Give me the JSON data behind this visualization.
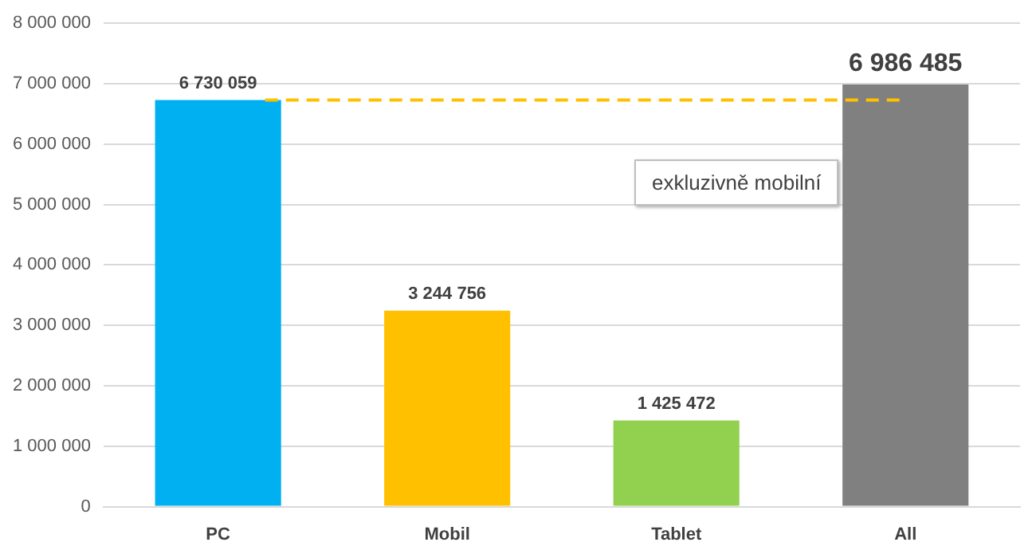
{
  "chart_data": {
    "type": "bar",
    "categories": [
      "PC",
      "Mobil",
      "Tablet",
      "All"
    ],
    "values": [
      6730059,
      3244756,
      1425472,
      6986485
    ],
    "colors": [
      "#00b0f0",
      "#ffc000",
      "#92d050",
      "#808080"
    ],
    "value_labels": [
      "6 730 059",
      "3 244 756",
      "1 425 472",
      "6 986 485"
    ],
    "ylim": [
      0,
      8000000
    ],
    "yticks": [
      {
        "value": 0,
        "label": "0"
      },
      {
        "value": 1000000,
        "label": "1 000 000"
      },
      {
        "value": 2000000,
        "label": "2 000 000"
      },
      {
        "value": 3000000,
        "label": "3 000 000"
      },
      {
        "value": 4000000,
        "label": "4 000 000"
      },
      {
        "value": 5000000,
        "label": "5 000 000"
      },
      {
        "value": 6000000,
        "label": "6 000 000"
      },
      {
        "value": 7000000,
        "label": "7 000 000"
      },
      {
        "value": 8000000,
        "label": "8 000 000"
      }
    ],
    "grid": "y",
    "legend": false,
    "ref_lines": [
      {
        "axis": "y",
        "value": 6730059,
        "color": "#ffc000",
        "line_style": "dashed"
      }
    ],
    "annotations": [
      "exkluzivně mobilní"
    ]
  }
}
